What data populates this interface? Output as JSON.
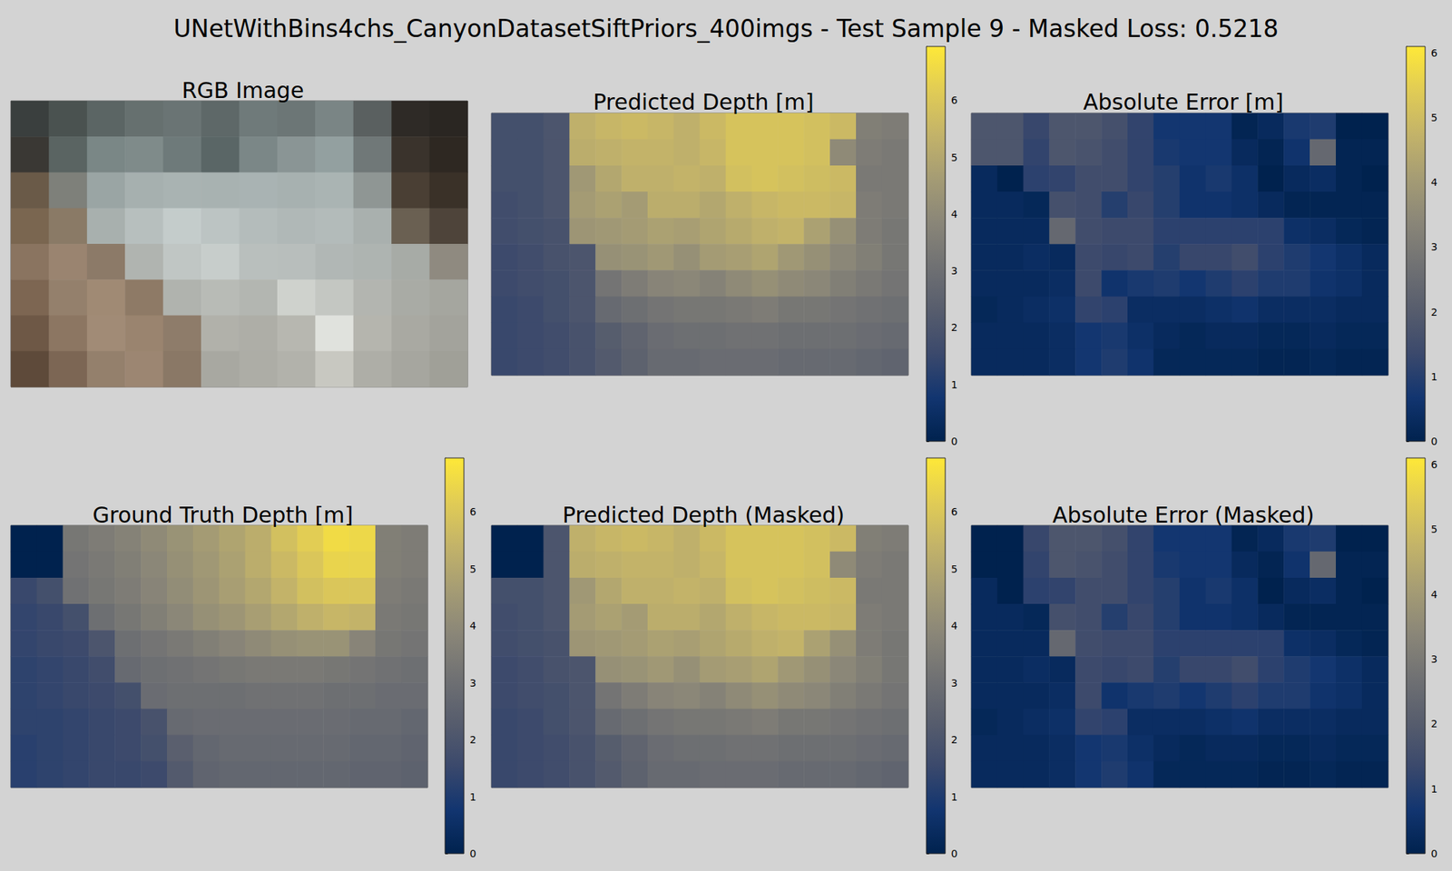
{
  "chart_data": {
    "type": "heatmap",
    "title": "UNetWithBins4chs_CanyonDatasetSiftPriors_400imgs - Test Sample 9 - Masked Loss: 0.5218",
    "panels": [
      {
        "title": "RGB Image",
        "type": "image",
        "colors": [
          [
            "#3a3f3e",
            "#4a5250",
            "#5b6564",
            "#66706f",
            "#6a7474",
            "#5e6868",
            "#6f7a7a",
            "#6c7676",
            "#7a8585",
            "#5a6060",
            "#2e2a26",
            "#2a2622"
          ],
          [
            "#3a3834",
            "#5a6462",
            "#7a8786",
            "#7f8b8a",
            "#6e7a7a",
            "#5a6666",
            "#7b8787",
            "#8a9595",
            "#93a0a0",
            "#707878",
            "#3a332c",
            "#2e2822"
          ],
          [
            "#6a5a48",
            "#7e807a",
            "#9aa5a4",
            "#a6b0af",
            "#a9b3b2",
            "#a8b2b1",
            "#a9b3b3",
            "#a7b1b0",
            "#aab4b3",
            "#8f9694",
            "#4a3f34",
            "#3a3128"
          ],
          [
            "#7a6650",
            "#8a7a66",
            "#a8b0ae",
            "#b7bfbe",
            "#c4cccb",
            "#bcc4c3",
            "#b4bcbb",
            "#b0b8b7",
            "#b3bbba",
            "#a9b0ae",
            "#6a6052",
            "#4e443a"
          ],
          [
            "#8a7460",
            "#9a8470",
            "#8c7a68",
            "#b0b4b0",
            "#c0c6c4",
            "#c7cdcb",
            "#b9bfbd",
            "#b8bebc",
            "#b1b7b5",
            "#aeb4b1",
            "#a7aba6",
            "#8f8a80"
          ],
          [
            "#7d6652",
            "#94806c",
            "#a08a74",
            "#8e7a66",
            "#b0b3ae",
            "#b8bbb6",
            "#b3b6b1",
            "#cfd2cd",
            "#c4c7c2",
            "#b3b5b0",
            "#a9aba5",
            "#a5a69f"
          ],
          [
            "#6e5846",
            "#8c7662",
            "#a18b76",
            "#9a846f",
            "#8e7c6a",
            "#b1b1aa",
            "#aeaea7",
            "#b7b7b0",
            "#e0e2dd",
            "#b5b5ae",
            "#a9a9a2",
            "#a3a39c"
          ],
          [
            "#5e4a3a",
            "#7c6654",
            "#94806c",
            "#9c8672",
            "#8a7866",
            "#a8a8a1",
            "#adada6",
            "#b2b2ab",
            "#c8c8c1",
            "#aeaea7",
            "#a6a69f",
            "#a0a098"
          ]
        ]
      },
      {
        "title": "Predicted Depth [m]",
        "type": "heatmap",
        "colorbar": {
          "range": [
            0,
            6.95
          ],
          "ticks": [
            0,
            1,
            2,
            3,
            4,
            5,
            6
          ]
        },
        "values": [
          [
            1.8,
            1.8,
            2.0,
            5.3,
            5.5,
            5.6,
            5.5,
            5.3,
            5.6,
            5.9,
            5.9,
            5.9,
            5.8,
            5.6,
            3.6,
            3.5
          ],
          [
            1.8,
            1.8,
            2.0,
            5.2,
            5.3,
            5.4,
            5.4,
            5.3,
            5.5,
            5.9,
            5.9,
            5.9,
            5.8,
            4.0,
            3.5,
            3.4
          ],
          [
            1.8,
            1.8,
            2.0,
            4.5,
            5.0,
            5.3,
            5.3,
            5.4,
            5.3,
            5.8,
            5.9,
            5.8,
            5.7,
            5.6,
            3.4,
            3.4
          ],
          [
            1.7,
            1.8,
            2.0,
            4.6,
            4.8,
            4.6,
            5.2,
            5.2,
            5.0,
            5.3,
            5.5,
            5.6,
            5.6,
            5.5,
            3.5,
            3.4
          ],
          [
            1.7,
            1.8,
            1.9,
            4.4,
            4.5,
            4.6,
            4.8,
            4.7,
            4.9,
            5.1,
            5.3,
            5.4,
            4.8,
            4.2,
            3.5,
            3.3
          ],
          [
            1.6,
            1.7,
            1.9,
            2.0,
            4.2,
            4.3,
            4.5,
            4.2,
            4.6,
            4.7,
            4.9,
            4.5,
            4.2,
            3.9,
            3.6,
            3.3
          ],
          [
            1.6,
            1.7,
            1.8,
            2.0,
            3.2,
            3.5,
            3.8,
            3.9,
            3.7,
            4.0,
            4.2,
            4.0,
            3.9,
            3.6,
            3.4,
            3.2
          ],
          [
            1.5,
            1.6,
            1.8,
            2.0,
            2.8,
            3.0,
            3.2,
            3.3,
            3.3,
            3.4,
            3.5,
            3.3,
            3.3,
            3.2,
            3.1,
            3.0
          ],
          [
            1.5,
            1.6,
            1.7,
            1.9,
            2.3,
            2.6,
            2.9,
            3.0,
            3.0,
            3.1,
            3.1,
            3.0,
            3.0,
            3.0,
            2.9,
            2.8
          ],
          [
            1.5,
            1.6,
            1.7,
            1.9,
            2.2,
            2.5,
            2.8,
            2.8,
            2.9,
            2.9,
            2.9,
            2.8,
            2.8,
            2.8,
            2.7,
            2.6
          ]
        ]
      },
      {
        "title": "Absolute Error [m]",
        "type": "heatmap",
        "colorbar": {
          "range": [
            0,
            6.1
          ],
          "ticks": [
            0,
            1,
            2,
            3,
            4,
            5,
            6
          ]
        },
        "values": [
          [
            1.8,
            1.8,
            1.3,
            1.8,
            1.8,
            1.6,
            1.2,
            0.7,
            0.7,
            0.7,
            0.1,
            0.3,
            0.8,
            0.9,
            0.0,
            0.0
          ],
          [
            1.8,
            1.8,
            1.2,
            1.8,
            1.7,
            1.5,
            1.2,
            0.8,
            0.7,
            0.7,
            0.3,
            0.1,
            0.6,
            2.4,
            0.1,
            0.1
          ],
          [
            0.3,
            0.0,
            1.1,
            1.2,
            1.5,
            1.5,
            1.2,
            1.0,
            0.6,
            0.8,
            0.5,
            0.0,
            0.3,
            0.4,
            0.1,
            0.0
          ],
          [
            0.3,
            0.3,
            0.2,
            1.6,
            1.5,
            1.0,
            1.3,
            1.0,
            0.6,
            0.6,
            0.5,
            0.3,
            0.1,
            0.1,
            0.1,
            0.1
          ],
          [
            0.3,
            0.3,
            0.3,
            2.4,
            1.5,
            1.4,
            1.4,
            1.1,
            1.1,
            1.1,
            1.1,
            1.1,
            0.5,
            0.4,
            0.2,
            0.1
          ],
          [
            0.3,
            0.3,
            0.4,
            0.3,
            1.4,
            1.3,
            1.4,
            1.0,
            1.3,
            1.3,
            1.5,
            1.1,
            0.9,
            0.7,
            0.5,
            0.3
          ],
          [
            0.3,
            0.3,
            0.3,
            0.4,
            1.4,
            0.6,
            0.8,
            0.9,
            0.7,
            0.9,
            1.1,
            0.9,
            0.9,
            0.6,
            0.5,
            0.3
          ],
          [
            0.2,
            0.3,
            0.4,
            0.5,
            1.2,
            1.1,
            0.4,
            0.4,
            0.4,
            0.5,
            0.6,
            0.4,
            0.4,
            0.4,
            0.3,
            0.3
          ],
          [
            0.3,
            0.3,
            0.3,
            0.4,
            0.7,
            0.8,
            0.5,
            0.3,
            0.2,
            0.3,
            0.3,
            0.2,
            0.2,
            0.3,
            0.2,
            0.2
          ],
          [
            0.3,
            0.3,
            0.3,
            0.4,
            0.7,
            0.9,
            0.6,
            0.2,
            0.2,
            0.2,
            0.2,
            0.1,
            0.1,
            0.2,
            0.1,
            0.1
          ]
        ]
      },
      {
        "title": "Ground Truth Depth [m]",
        "type": "heatmap",
        "colorbar": {
          "range": [
            0,
            6.95
          ],
          "ticks": [
            0,
            1,
            2,
            3,
            4,
            5,
            6
          ]
        },
        "values": [
          [
            0,
            0,
            3.3,
            3.5,
            3.7,
            4.0,
            4.3,
            4.6,
            4.9,
            5.2,
            5.8,
            6.2,
            6.6,
            6.5,
            3.6,
            3.5
          ],
          [
            0,
            0,
            3.2,
            3.4,
            3.6,
            3.9,
            4.2,
            4.5,
            4.8,
            5.2,
            5.6,
            6.0,
            6.4,
            6.4,
            3.6,
            3.5
          ],
          [
            1.5,
            1.8,
            3.1,
            3.3,
            3.5,
            3.8,
            4.1,
            4.4,
            4.7,
            5.0,
            5.4,
            5.8,
            6.0,
            6.0,
            3.5,
            3.4
          ],
          [
            1.4,
            1.5,
            1.8,
            3.0,
            3.3,
            3.6,
            3.9,
            4.2,
            4.4,
            4.7,
            5.0,
            5.3,
            5.5,
            5.4,
            3.4,
            3.3
          ],
          [
            1.4,
            1.5,
            1.6,
            2.0,
            3.0,
            3.2,
            3.4,
            3.6,
            3.8,
            4.0,
            4.2,
            4.3,
            4.3,
            3.8,
            3.3,
            3.2
          ],
          [
            1.3,
            1.4,
            1.5,
            1.7,
            2.8,
            3.0,
            3.1,
            3.2,
            3.3,
            3.4,
            3.4,
            3.4,
            3.3,
            3.2,
            3.1,
            3.0
          ],
          [
            1.3,
            1.4,
            1.5,
            1.6,
            1.8,
            2.9,
            3.0,
            3.0,
            3.0,
            3.1,
            3.1,
            3.1,
            3.0,
            3.0,
            2.9,
            2.9
          ],
          [
            1.3,
            1.3,
            1.4,
            1.5,
            1.6,
            1.9,
            2.8,
            2.9,
            2.9,
            2.9,
            2.9,
            2.9,
            2.9,
            2.8,
            2.8,
            2.7
          ],
          [
            1.2,
            1.3,
            1.4,
            1.5,
            1.6,
            1.8,
            2.4,
            2.7,
            2.8,
            2.8,
            2.8,
            2.8,
            2.8,
            2.7,
            2.7,
            2.6
          ],
          [
            1.2,
            1.3,
            1.4,
            1.5,
            1.5,
            1.6,
            2.2,
            2.6,
            2.7,
            2.7,
            2.7,
            2.7,
            2.7,
            2.6,
            2.6,
            2.5
          ]
        ]
      },
      {
        "title": "Predicted Depth (Masked)",
        "type": "heatmap",
        "colorbar": {
          "range": [
            0,
            6.95
          ],
          "ticks": [
            0,
            1,
            2,
            3,
            4,
            5,
            6
          ]
        },
        "values": [
          [
            0,
            0,
            2.0,
            5.3,
            5.5,
            5.6,
            5.5,
            5.3,
            5.6,
            5.9,
            5.9,
            5.9,
            5.8,
            5.6,
            3.6,
            3.5
          ],
          [
            0,
            0,
            2.0,
            5.2,
            5.3,
            5.4,
            5.4,
            5.3,
            5.5,
            5.9,
            5.9,
            5.9,
            5.8,
            4.0,
            3.5,
            3.4
          ],
          [
            1.8,
            1.8,
            2.0,
            4.5,
            5.0,
            5.3,
            5.3,
            5.4,
            5.3,
            5.8,
            5.9,
            5.8,
            5.7,
            5.6,
            3.4,
            3.4
          ],
          [
            1.7,
            1.8,
            2.0,
            4.6,
            4.8,
            4.6,
            5.2,
            5.2,
            5.0,
            5.3,
            5.5,
            5.6,
            5.6,
            5.5,
            3.5,
            3.4
          ],
          [
            1.7,
            1.8,
            1.9,
            4.4,
            4.5,
            4.6,
            4.8,
            4.7,
            4.9,
            5.1,
            5.3,
            5.4,
            4.8,
            4.2,
            3.5,
            3.3
          ],
          [
            1.6,
            1.7,
            1.9,
            2.0,
            4.2,
            4.3,
            4.5,
            4.2,
            4.6,
            4.7,
            4.9,
            4.5,
            4.2,
            3.9,
            3.6,
            3.3
          ],
          [
            1.6,
            1.7,
            1.8,
            2.0,
            3.2,
            3.5,
            3.8,
            3.9,
            3.7,
            4.0,
            4.2,
            4.0,
            3.9,
            3.6,
            3.4,
            3.2
          ],
          [
            1.5,
            1.6,
            1.8,
            2.0,
            2.8,
            3.0,
            3.2,
            3.3,
            3.3,
            3.4,
            3.5,
            3.3,
            3.3,
            3.2,
            3.1,
            3.0
          ],
          [
            1.5,
            1.6,
            1.7,
            1.9,
            2.3,
            2.6,
            2.9,
            3.0,
            3.0,
            3.1,
            3.1,
            3.0,
            3.0,
            3.0,
            2.9,
            2.8
          ],
          [
            1.5,
            1.6,
            1.7,
            1.9,
            2.2,
            2.5,
            2.8,
            2.8,
            2.9,
            2.9,
            2.9,
            2.8,
            2.8,
            2.8,
            2.7,
            2.6
          ]
        ]
      },
      {
        "title": "Absolute Error (Masked)",
        "type": "heatmap",
        "colorbar": {
          "range": [
            0,
            6.1
          ],
          "ticks": [
            0,
            1,
            2,
            3,
            4,
            5,
            6
          ]
        },
        "values": [
          [
            0,
            0,
            1.3,
            1.8,
            1.8,
            1.6,
            1.2,
            0.7,
            0.7,
            0.7,
            0.1,
            0.3,
            0.8,
            0.9,
            0.0,
            0.0
          ],
          [
            0,
            0,
            1.2,
            1.8,
            1.7,
            1.5,
            1.2,
            0.8,
            0.7,
            0.7,
            0.3,
            0.1,
            0.6,
            2.4,
            0.1,
            0.1
          ],
          [
            0.3,
            0.0,
            1.1,
            1.2,
            1.5,
            1.5,
            1.2,
            1.0,
            0.6,
            0.8,
            0.5,
            0.0,
            0.3,
            0.4,
            0.1,
            0.0
          ],
          [
            0.3,
            0.3,
            0.2,
            1.6,
            1.5,
            1.0,
            1.3,
            1.0,
            0.6,
            0.6,
            0.5,
            0.3,
            0.1,
            0.1,
            0.1,
            0.1
          ],
          [
            0.3,
            0.3,
            0.3,
            2.4,
            1.5,
            1.4,
            1.4,
            1.1,
            1.1,
            1.1,
            1.1,
            1.1,
            0.5,
            0.4,
            0.2,
            0.1
          ],
          [
            0.3,
            0.3,
            0.4,
            0.3,
            1.4,
            1.3,
            1.4,
            1.0,
            1.3,
            1.3,
            1.5,
            1.1,
            0.9,
            0.7,
            0.5,
            0.3
          ],
          [
            0.3,
            0.3,
            0.3,
            0.4,
            1.4,
            0.6,
            0.8,
            0.9,
            0.7,
            0.9,
            1.1,
            0.9,
            0.9,
            0.6,
            0.5,
            0.3
          ],
          [
            0.2,
            0.3,
            0.4,
            0.5,
            1.2,
            1.1,
            0.4,
            0.4,
            0.4,
            0.5,
            0.6,
            0.4,
            0.4,
            0.4,
            0.3,
            0.3
          ],
          [
            0.3,
            0.3,
            0.3,
            0.4,
            0.7,
            0.8,
            0.5,
            0.3,
            0.2,
            0.3,
            0.3,
            0.2,
            0.2,
            0.3,
            0.2,
            0.2
          ],
          [
            0.3,
            0.3,
            0.3,
            0.4,
            0.7,
            0.9,
            0.6,
            0.2,
            0.2,
            0.2,
            0.2,
            0.1,
            0.1,
            0.2,
            0.1,
            0.1
          ]
        ]
      }
    ]
  }
}
